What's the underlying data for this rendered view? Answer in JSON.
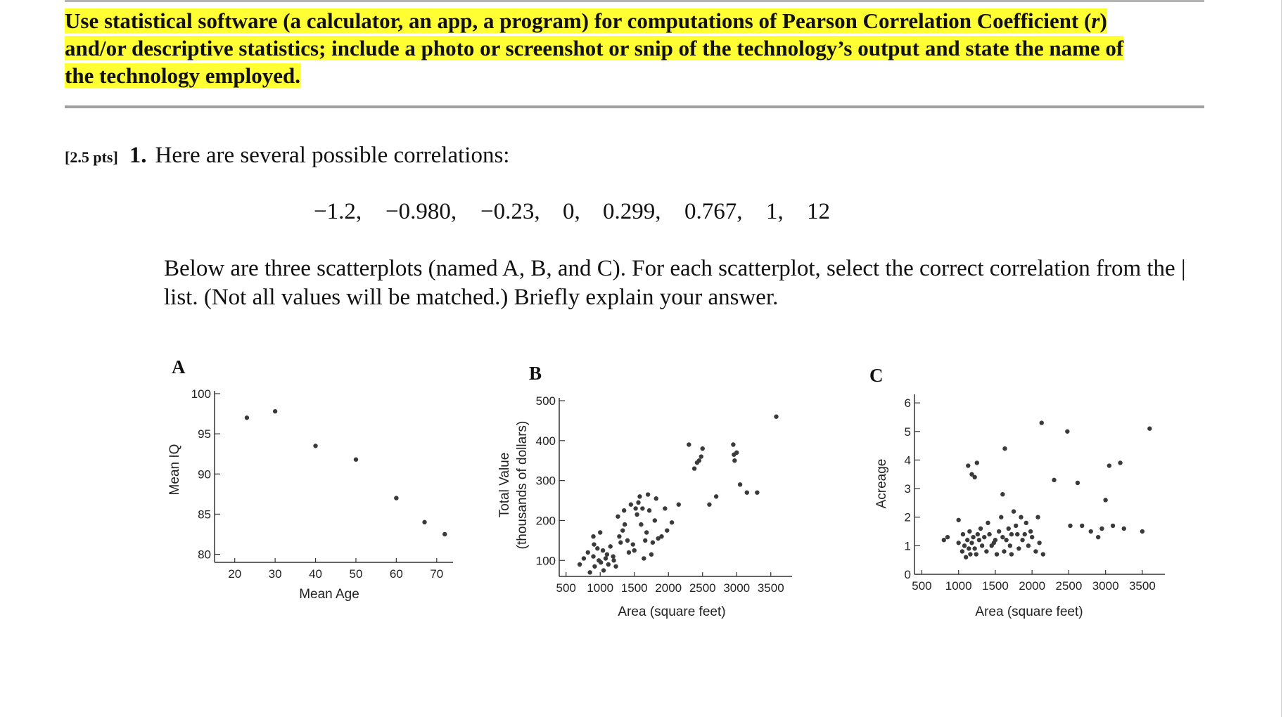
{
  "header": {
    "instructions_line1": "Use statistical software (a calculator, an app, a program) for computations of Pearson Correlation Coefficient (",
    "instructions_r": "r",
    "instructions_line1_end": ")",
    "instructions_line2": "and/or descriptive statistics; include a photo or screenshot or snip of the technology’s output and state the name of",
    "instructions_line3": "the technology employed."
  },
  "question": {
    "points": "[2.5 pts]",
    "number": "1.",
    "prompt": "Here are several possible correlations:",
    "correlations": [
      "−1.2,",
      "−0.980,",
      "−0.23,",
      "0,",
      "0.299,",
      "0.767,",
      "1,",
      "12"
    ],
    "instruction_line1": "Below are three scatterplots (named A, B, and C).  For each scatterplot, select the correct correlation from the |",
    "instruction_line2": "list.  (Not all values will be matched.)  Briefly explain your answer."
  },
  "chart_data": [
    {
      "type": "scatter",
      "title": "A",
      "xlabel": "Mean Age",
      "ylabel": "Mean IQ",
      "xlim": [
        15,
        73
      ],
      "ylim": [
        79,
        100
      ],
      "xticks": [
        20,
        30,
        40,
        50,
        60,
        70
      ],
      "yticks": [
        80,
        85,
        90,
        95,
        100
      ],
      "x": [
        23,
        30,
        40,
        50,
        60,
        67,
        72
      ],
      "y": [
        97,
        97.8,
        93.5,
        91.8,
        87,
        84,
        82.5
      ]
    },
    {
      "type": "scatter",
      "title": "B",
      "xlabel": "Area (square feet)",
      "ylabel_line1": "Total Value",
      "ylabel_line2": "(thousands of dollars)",
      "xlim": [
        400,
        3750
      ],
      "ylim": [
        60,
        500
      ],
      "xticks": [
        500,
        1000,
        1500,
        2000,
        2500,
        3000,
        3500
      ],
      "yticks": [
        100,
        200,
        300,
        400,
        500
      ],
      "x": [
        700,
        760,
        820,
        850,
        900,
        910,
        920,
        960,
        980,
        1010,
        1040,
        1050,
        1080,
        1100,
        1120,
        1000,
        900,
        1150,
        1190,
        1200,
        1230,
        1280,
        1300,
        1330,
        1360,
        1400,
        1420,
        1260,
        1350,
        1450,
        1480,
        1500,
        1520,
        1540,
        1560,
        1580,
        1600,
        1620,
        1640,
        1660,
        1680,
        1700,
        1720,
        1750,
        1770,
        1800,
        1820,
        1850,
        1900,
        1950,
        1980,
        2050,
        2150,
        2300,
        2380,
        2420,
        2450,
        2480,
        2500,
        2600,
        2700,
        2950,
        2960,
        2970,
        3000,
        3050,
        3150,
        3300,
        3580
      ],
      "y": [
        90,
        105,
        120,
        70,
        110,
        140,
        85,
        130,
        100,
        95,
        125,
        75,
        105,
        115,
        90,
        170,
        160,
        135,
        110,
        100,
        85,
        160,
        145,
        175,
        190,
        150,
        120,
        210,
        225,
        240,
        140,
        125,
        230,
        215,
        245,
        260,
        190,
        230,
        105,
        150,
        170,
        265,
        225,
        115,
        145,
        200,
        255,
        155,
        160,
        230,
        175,
        195,
        240,
        390,
        330,
        345,
        350,
        360,
        380,
        240,
        260,
        390,
        365,
        350,
        370,
        290,
        270,
        270,
        460
      ]
    },
    {
      "type": "scatter",
      "title": "C",
      "xlabel": "Area (square feet)",
      "ylabel": "Acreage",
      "xlim": [
        400,
        3750
      ],
      "ylim": [
        0,
        6.2
      ],
      "xticks": [
        500,
        1000,
        1500,
        2000,
        2500,
        3000,
        3500
      ],
      "yticks": [
        0,
        1,
        2,
        3,
        4,
        5,
        6
      ],
      "x": [
        800,
        850,
        1000,
        1050,
        1060,
        1080,
        1100,
        1120,
        1140,
        1150,
        1160,
        1180,
        1200,
        1220,
        1240,
        1260,
        1280,
        1300,
        1320,
        1350,
        1380,
        1400,
        1420,
        1450,
        1480,
        1500,
        1520,
        1550,
        1580,
        1600,
        1620,
        1650,
        1680,
        1700,
        1720,
        1750,
        1780,
        1800,
        1820,
        1850,
        1870,
        1900,
        1920,
        1950,
        1980,
        2000,
        2050,
        2080,
        2100,
        2150,
        1000,
        1130,
        1180,
        1220,
        1250,
        1600,
        1630,
        1720,
        2130,
        2300,
        2480,
        2520,
        2620,
        2680,
        2800,
        2900,
        2950,
        3000,
        3050,
        3100,
        3200,
        3250,
        3500,
        3600
      ],
      "y": [
        1.2,
        1.3,
        1.1,
        0.8,
        1.4,
        1.0,
        0.6,
        1.2,
        0.9,
        1.5,
        0.7,
        1.1,
        1.3,
        0.9,
        0.7,
        1.4,
        1.2,
        1.6,
        1.0,
        1.3,
        0.8,
        1.8,
        1.4,
        1.0,
        1.1,
        1.2,
        0.7,
        1.5,
        2.0,
        1.3,
        0.8,
        1.2,
        1.6,
        1.0,
        0.7,
        2.2,
        1.7,
        1.4,
        0.9,
        2.0,
        1.2,
        1.4,
        1.8,
        1.0,
        1.5,
        1.3,
        0.8,
        2.0,
        1.1,
        0.7,
        1.9,
        3.8,
        3.5,
        3.4,
        3.9,
        2.8,
        4.4,
        1.4,
        5.3,
        3.3,
        5.0,
        1.7,
        3.2,
        1.7,
        1.5,
        1.3,
        1.6,
        2.6,
        3.8,
        1.7,
        3.9,
        1.6,
        1.5,
        5.1
      ]
    }
  ]
}
